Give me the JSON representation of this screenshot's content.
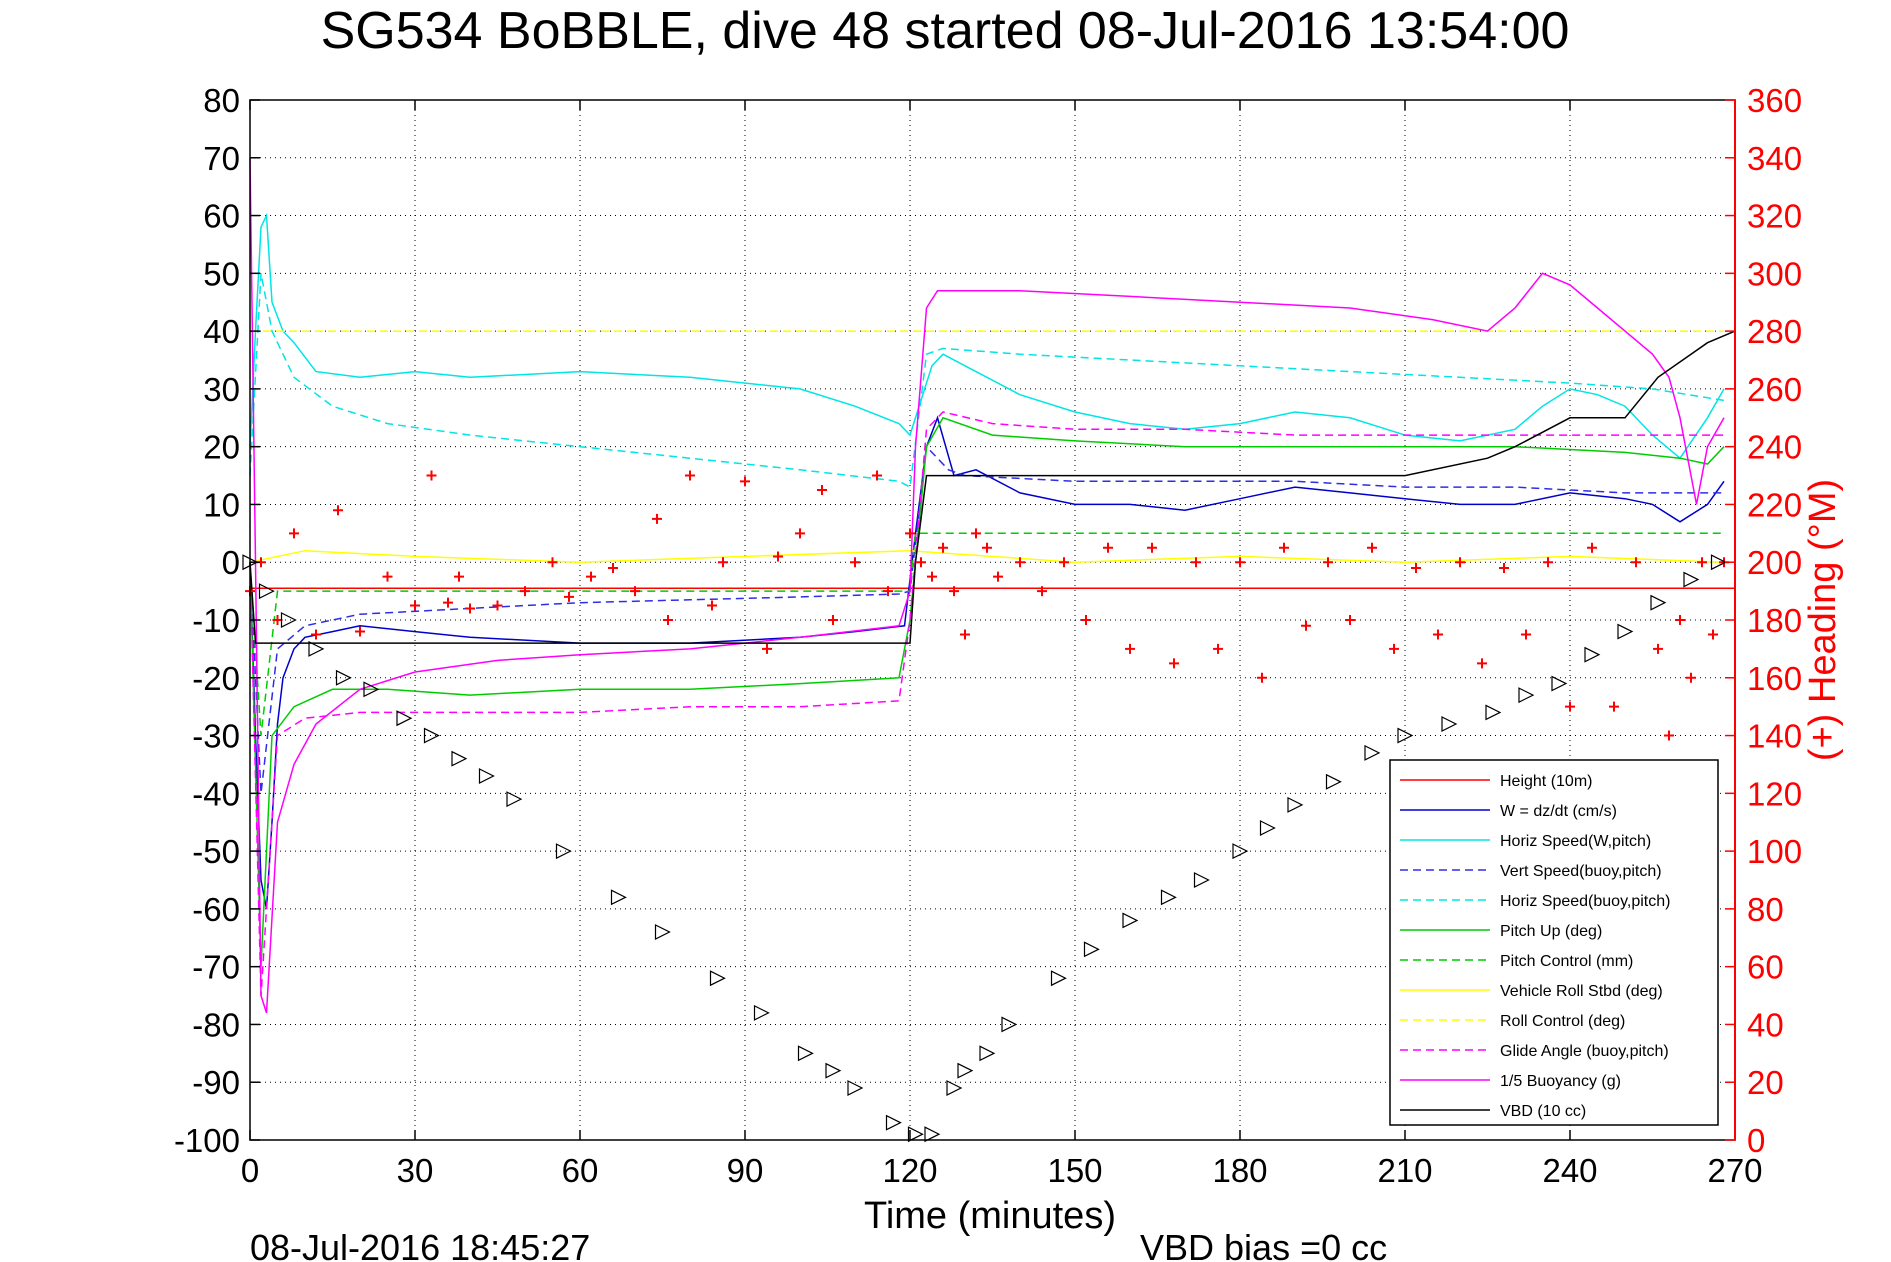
{
  "title": "SG534 BoBBLE, dive 48 started 08-Jul-2016 13:54:00",
  "footer_left": "08-Jul-2016 18:45:27",
  "footer_right": "VBD bias =0 cc",
  "chart_data": {
    "type": "line",
    "title": "SG534 BoBBLE, dive 48 started 08-Jul-2016 13:54:00",
    "xlabel": "Time (minutes)",
    "ylabel_left": "",
    "ylabel_right": "(+) Heading (°M)",
    "xlim": [
      0,
      270
    ],
    "ylim_left": [
      -100,
      80
    ],
    "ylim_right": [
      0,
      360
    ],
    "x_ticks": [
      0,
      30,
      60,
      90,
      120,
      150,
      180,
      210,
      240,
      270
    ],
    "y_ticks_left": [
      80,
      70,
      60,
      50,
      40,
      30,
      20,
      10,
      0,
      -10,
      -20,
      -30,
      -40,
      -50,
      -60,
      -70,
      -80,
      -90,
      -100
    ],
    "y_ticks_right": [
      360,
      340,
      320,
      300,
      280,
      260,
      240,
      220,
      200,
      180,
      160,
      140,
      120,
      100,
      80,
      60,
      40,
      20,
      0
    ],
    "grid": true,
    "legend_position": "bottom-right",
    "colors": {
      "red": "#ff0000",
      "blue": "#0000cc",
      "cyan": "#00e5e5",
      "green": "#00cc00",
      "yellow": "#ffff00",
      "magenta": "#ff00ff",
      "black": "#000000",
      "white": "#ffffff"
    },
    "series": [
      {
        "name": "Height (10m)",
        "color": "#ff0000",
        "style": "solid",
        "axis": "left",
        "x": [
          0,
          270
        ],
        "y": [
          -4.5,
          -4.5
        ]
      },
      {
        "name": "W = dz/dt (cm/s)",
        "color": "#0000cc",
        "style": "solid",
        "axis": "left",
        "x": [
          0,
          1,
          2,
          3,
          4,
          5,
          6,
          8,
          10,
          15,
          20,
          30,
          40,
          60,
          80,
          100,
          110,
          119,
          121,
          123,
          125,
          128,
          132,
          140,
          150,
          160,
          170,
          180,
          190,
          200,
          210,
          220,
          230,
          240,
          250,
          255,
          260,
          265,
          268
        ],
        "y": [
          0,
          -30,
          -55,
          -60,
          -45,
          -28,
          -20,
          -15,
          -13,
          -12,
          -11,
          -12,
          -13,
          -14,
          -14,
          -13,
          -12,
          -11,
          5,
          20,
          25,
          15,
          16,
          12,
          10,
          10,
          9,
          11,
          13,
          12,
          11,
          10,
          10,
          12,
          11,
          10,
          7,
          10,
          14
        ]
      },
      {
        "name": "Horiz Speed(W,pitch)",
        "color": "#00e5e5",
        "style": "solid",
        "axis": "left",
        "x": [
          0,
          1,
          2,
          3,
          4,
          6,
          8,
          12,
          20,
          30,
          40,
          60,
          80,
          100,
          110,
          118,
          120,
          122,
          124,
          126,
          130,
          140,
          150,
          160,
          170,
          180,
          190,
          200,
          210,
          220,
          230,
          235,
          240,
          245,
          250,
          255,
          260,
          265,
          268
        ],
        "y": [
          20,
          40,
          58,
          60,
          45,
          40,
          38,
          33,
          32,
          33,
          32,
          33,
          32,
          30,
          27,
          24,
          22,
          28,
          34,
          36,
          34,
          29,
          26,
          24,
          23,
          24,
          26,
          25,
          22,
          21,
          23,
          27,
          30,
          29,
          27,
          22,
          18,
          25,
          30
        ]
      },
      {
        "name": "Vert Speed(buoy,pitch)",
        "color": "#2e2ee6",
        "style": "dashed",
        "axis": "left",
        "x": [
          0,
          2,
          5,
          10,
          20,
          40,
          60,
          80,
          100,
          118,
          120,
          123,
          127,
          130,
          150,
          170,
          190,
          210,
          230,
          250,
          268
        ],
        "y": [
          0,
          -40,
          -15,
          -11,
          -9,
          -8,
          -7,
          -6.5,
          -6,
          -5.5,
          -5,
          20,
          16,
          15,
          14,
          14,
          14,
          13,
          13,
          12,
          12
        ]
      },
      {
        "name": "Horiz Speed(buoy,pitch)",
        "color": "#00e5e5",
        "style": "dashed",
        "axis": "left",
        "x": [
          0,
          2,
          4,
          8,
          15,
          25,
          40,
          60,
          80,
          100,
          118,
          120,
          123,
          126,
          140,
          160,
          180,
          200,
          220,
          240,
          255,
          268
        ],
        "y": [
          15,
          50,
          40,
          32,
          27,
          24,
          22,
          20,
          18,
          16,
          14,
          13,
          36,
          37,
          36,
          35,
          34,
          33,
          32,
          31,
          30,
          28
        ]
      },
      {
        "name": "Pitch Up (deg)",
        "color": "#00cc00",
        "style": "solid",
        "axis": "left",
        "x": [
          0,
          2,
          4,
          8,
          15,
          25,
          40,
          60,
          80,
          100,
          118,
          120,
          123,
          126,
          135,
          150,
          170,
          190,
          210,
          230,
          250,
          260,
          265,
          268
        ],
        "y": [
          0,
          -70,
          -30,
          -25,
          -22,
          -22,
          -23,
          -22,
          -22,
          -21,
          -20,
          -10,
          20,
          25,
          22,
          21,
          20,
          20,
          20,
          20,
          19,
          18,
          17,
          20
        ]
      },
      {
        "name": "Pitch Control (mm)",
        "color": "#00cc00",
        "style": "dashed",
        "axis": "left",
        "x": [
          0,
          2,
          5,
          120,
          121,
          125,
          268
        ],
        "y": [
          0,
          -30,
          -5,
          -5,
          5,
          5,
          5
        ]
      },
      {
        "name": "Vehicle Roll Stbd (deg)",
        "color": "#ffff00",
        "style": "solid",
        "axis": "left",
        "x": [
          0,
          10,
          30,
          60,
          90,
          120,
          150,
          180,
          210,
          240,
          268
        ],
        "y": [
          0,
          2,
          1,
          0,
          1,
          2,
          0,
          1,
          0,
          1,
          0
        ]
      },
      {
        "name": "Roll Control (deg)",
        "color": "#ffff00",
        "style": "dashed",
        "axis": "left",
        "x": [
          0,
          30,
          60,
          90,
          120,
          150,
          180,
          210,
          240,
          268
        ],
        "y": [
          40,
          40,
          40,
          40,
          40,
          40,
          40,
          40,
          40,
          40
        ]
      },
      {
        "name": "Glide Angle (buoy,pitch)",
        "color": "#ff00ff",
        "style": "dashed",
        "axis": "left",
        "x": [
          0,
          2,
          5,
          10,
          20,
          40,
          60,
          80,
          100,
          118,
          120,
          123,
          126,
          135,
          150,
          170,
          190,
          210,
          230,
          250,
          268
        ],
        "y": [
          0,
          -75,
          -30,
          -27,
          -26,
          -26,
          -26,
          -25,
          -25,
          -24,
          -10,
          23,
          26,
          24,
          23,
          23,
          22,
          22,
          22,
          22,
          22
        ]
      },
      {
        "name": "1/5 Buoyancy (g)",
        "color": "#ff00ff",
        "style": "solid",
        "axis": "left",
        "x": [
          0,
          1,
          2,
          3,
          5,
          8,
          12,
          20,
          30,
          45,
          60,
          80,
          100,
          118,
          120,
          121,
          123,
          125,
          140,
          160,
          180,
          200,
          215,
          225,
          230,
          235,
          240,
          245,
          250,
          255,
          258,
          260,
          263,
          265,
          268
        ],
        "y": [
          70,
          0,
          -75,
          -78,
          -45,
          -35,
          -28,
          -22,
          -19,
          -17,
          -16,
          -15,
          -13,
          -11,
          -5,
          20,
          44,
          47,
          47,
          46,
          45,
          44,
          42,
          40,
          44,
          50,
          48,
          44,
          40,
          36,
          32,
          25,
          10,
          20,
          25
        ]
      },
      {
        "name": "VBD (10 cc)",
        "color": "#000000",
        "style": "solid",
        "axis": "left",
        "x": [
          0,
          1,
          2,
          120,
          121,
          123,
          130,
          140,
          160,
          190,
          210,
          225,
          230,
          240,
          250,
          256,
          262,
          265,
          270
        ],
        "y": [
          0,
          -14,
          -14,
          -14,
          0,
          15,
          15,
          15,
          15,
          15,
          15,
          18,
          20,
          25,
          25,
          32,
          36,
          38,
          40
        ]
      },
      {
        "name": "Heading",
        "color": "#ff0000",
        "style": "plus-markers",
        "axis": "right",
        "x": [
          0,
          2,
          5,
          8,
          12,
          16,
          20,
          25,
          30,
          33,
          36,
          38,
          40,
          45,
          50,
          55,
          58,
          62,
          66,
          70,
          74,
          76,
          80,
          84,
          86,
          90,
          94,
          96,
          100,
          104,
          106,
          110,
          114,
          116,
          120,
          122,
          124,
          126,
          128,
          130,
          132,
          134,
          136,
          140,
          144,
          148,
          152,
          156,
          160,
          164,
          168,
          172,
          176,
          180,
          184,
          188,
          192,
          196,
          200,
          204,
          208,
          212,
          216,
          220,
          224,
          228,
          232,
          236,
          240,
          244,
          248,
          252,
          256,
          258,
          260,
          262,
          264,
          266,
          268
        ],
        "y": [
          190,
          200,
          180,
          210,
          175,
          218,
          176,
          195,
          185,
          230,
          186,
          195,
          184,
          185,
          190,
          200,
          188,
          195,
          198,
          190,
          215,
          180,
          230,
          185,
          200,
          228,
          170,
          202,
          210,
          225,
          180,
          200,
          230,
          190,
          210,
          200,
          195,
          205,
          190,
          175,
          210,
          205,
          195,
          200,
          190,
          200,
          180,
          205,
          170,
          205,
          165,
          200,
          170,
          200,
          160,
          205,
          178,
          200,
          180,
          205,
          170,
          198,
          175,
          200,
          165,
          198,
          175,
          200,
          150,
          205,
          150,
          200,
          170,
          140,
          180,
          160,
          200,
          175,
          200
        ]
      },
      {
        "name": "Depth markers",
        "color": "#000000",
        "style": "triangle-markers",
        "axis": "left",
        "x": [
          0,
          3,
          7,
          12,
          17,
          22,
          28,
          33,
          38,
          43,
          48,
          57,
          67,
          75,
          85,
          93,
          101,
          106,
          110,
          117,
          121,
          124,
          128,
          130,
          134,
          138,
          147,
          153,
          160,
          167,
          173,
          180,
          185,
          190,
          197,
          204,
          210,
          218,
          226,
          232,
          238,
          244,
          250,
          256,
          262,
          267
        ],
        "y": [
          0,
          -5,
          -10,
          -15,
          -20,
          -22,
          -27,
          -30,
          -34,
          -37,
          -41,
          -50,
          -58,
          -64,
          -72,
          -78,
          -85,
          -88,
          -91,
          -97,
          -99,
          -99,
          -91,
          -88,
          -85,
          -80,
          -72,
          -67,
          -62,
          -58,
          -55,
          -50,
          -46,
          -42,
          -38,
          -33,
          -30,
          -28,
          -26,
          -23,
          -21,
          -16,
          -12,
          -7,
          -3,
          0
        ]
      }
    ]
  }
}
